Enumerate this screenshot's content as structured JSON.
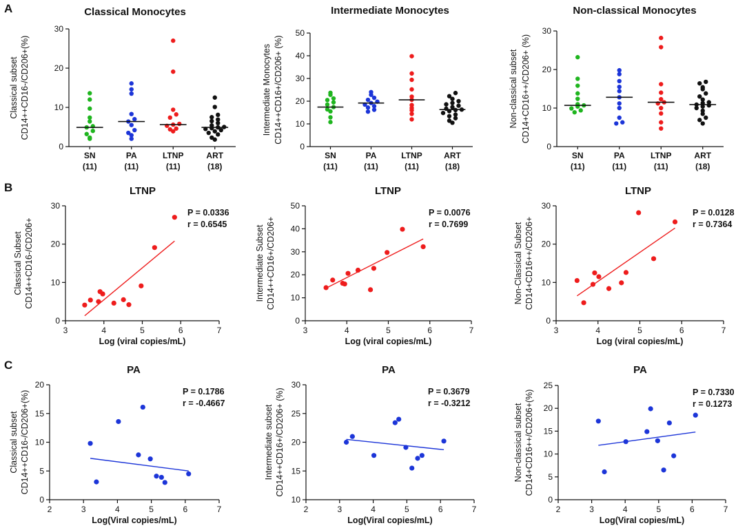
{
  "panel_labels": [
    "A",
    "B",
    "C"
  ],
  "chart_data": [
    {
      "id": "A1",
      "type": "scatter",
      "subtype": "dot-strip",
      "title": "Classical Monocytes",
      "ylabel": [
        "Classical subset",
        "CD14++CD16-/CD206+(%)"
      ],
      "ylim": [
        0,
        30
      ],
      "yticks": [
        0,
        10,
        20,
        30
      ],
      "categories": [
        "SN",
        "PA",
        "LTNP",
        "ART"
      ],
      "counts": [
        "(11)",
        "(11)",
        "(11)",
        "(18)"
      ],
      "colors": [
        "#1fb51f",
        "#1c35d8",
        "#ee1c1c",
        "#111111"
      ],
      "medians": [
        4.9,
        6.4,
        5.6,
        4.9
      ],
      "groups": [
        [
          2.0,
          2.3,
          3.2,
          4.0,
          4.9,
          5.2,
          6.4,
          7.4,
          9.7,
          12.0,
          13.6
        ],
        [
          2.0,
          2.9,
          3.5,
          4.2,
          5.5,
          6.4,
          7.0,
          8.3,
          13.5,
          14.6,
          16.1
        ],
        [
          3.9,
          4.4,
          4.6,
          5.3,
          5.6,
          5.8,
          7.4,
          8.2,
          9.4,
          19.1,
          27.0
        ],
        [
          1.8,
          2.3,
          3.1,
          3.5,
          3.9,
          4.2,
          4.5,
          4.7,
          4.9,
          5.0,
          5.4,
          6.0,
          6.5,
          6.9,
          7.5,
          8.1,
          10.1,
          12.5
        ]
      ]
    },
    {
      "id": "A2",
      "type": "scatter",
      "subtype": "dot-strip",
      "title": "Intermediate Monocytes",
      "ylabel": [
        "Intermediate Monocytes",
        "CD14++CD16+/CD206+ (%)"
      ],
      "ylim": [
        0,
        50
      ],
      "yticks": [
        0,
        10,
        20,
        30,
        40,
        50
      ],
      "categories": [
        "SN",
        "PA",
        "LTNP",
        "ART"
      ],
      "counts": [
        "(11)",
        "(11)",
        "(11)",
        "(18)"
      ],
      "colors": [
        "#1fb51f",
        "#1c35d8",
        "#ee1c1c",
        "#111111"
      ],
      "medians": [
        17.4,
        19.2,
        20.6,
        16.3
      ],
      "groups": [
        [
          10.8,
          12.9,
          15.5,
          16.4,
          17.4,
          18.5,
          19.5,
          20.5,
          21.2,
          22.8,
          23.7
        ],
        [
          15.4,
          16.2,
          17.2,
          17.8,
          18.5,
          19.2,
          19.8,
          20.6,
          21.5,
          22.8,
          24.0
        ],
        [
          12.0,
          14.4,
          16.0,
          17.0,
          18.3,
          20.6,
          22.0,
          25.2,
          29.4,
          32.2,
          39.8
        ],
        [
          10.5,
          11.4,
          12.5,
          13.4,
          14.1,
          14.8,
          15.6,
          16.1,
          16.3,
          16.7,
          17.4,
          18.0,
          18.6,
          19.2,
          20.0,
          21.0,
          22.2,
          23.6
        ]
      ]
    },
    {
      "id": "A3",
      "type": "scatter",
      "subtype": "dot-strip",
      "title": "Non-classical Monocytes",
      "ylabel": [
        "Non-classical subset",
        "CD14+CD16++/CD206+ (%)"
      ],
      "ylim": [
        0,
        30
      ],
      "yticks": [
        0,
        10,
        20,
        30
      ],
      "categories": [
        "SN",
        "PA",
        "LTNP",
        "ART"
      ],
      "counts": [
        "(11)",
        "(11)",
        "(11)",
        "(18)"
      ],
      "colors": [
        "#1fb51f",
        "#1c35d8",
        "#ee1c1c",
        "#111111"
      ],
      "medians": [
        10.7,
        12.8,
        11.5,
        10.9
      ],
      "groups": [
        [
          8.9,
          9.4,
          9.9,
          10.4,
          10.7,
          11.0,
          12.4,
          13.8,
          15.8,
          17.6,
          23.2
        ],
        [
          6.0,
          6.3,
          7.5,
          10.0,
          11.2,
          12.8,
          14.4,
          15.5,
          17.0,
          18.8,
          19.8
        ],
        [
          4.7,
          6.3,
          8.6,
          10.0,
          11.2,
          11.5,
          12.3,
          14.0,
          16.2,
          25.8,
          28.2
        ],
        [
          6.0,
          6.9,
          7.5,
          8.5,
          9.3,
          10.0,
          10.4,
          10.7,
          10.9,
          11.3,
          11.5,
          12.2,
          13.0,
          13.8,
          14.9,
          15.4,
          16.4,
          16.8
        ]
      ]
    },
    {
      "id": "B1",
      "type": "scatter",
      "title": "LTNP",
      "ylabel": [
        "Classical Subset",
        "CD14++CD16-/CD206+"
      ],
      "xlabel": "Log (viral copies/mL)",
      "xlim": [
        3,
        7
      ],
      "ylim": [
        0,
        30
      ],
      "xticks": [
        3,
        4,
        5,
        6,
        7
      ],
      "yticks": [
        0,
        10,
        20,
        30
      ],
      "stats": [
        "P = 0.0336",
        "r  = 0.6545"
      ],
      "color": "#ee1c1c",
      "points": [
        [
          3.5,
          4.1
        ],
        [
          3.65,
          5.4
        ],
        [
          3.86,
          5.0
        ],
        [
          3.9,
          7.6
        ],
        [
          3.97,
          7.0
        ],
        [
          4.26,
          4.6
        ],
        [
          4.51,
          5.5
        ],
        [
          4.65,
          4.2
        ],
        [
          4.97,
          9.1
        ],
        [
          5.32,
          19.1
        ],
        [
          5.84,
          27.0
        ]
      ],
      "fit": [
        [
          3.5,
          1.3
        ],
        [
          5.84,
          20.8
        ]
      ]
    },
    {
      "id": "B2",
      "type": "scatter",
      "title": "LTNP",
      "ylabel": [
        "Intermediate Subset",
        "CD14++CD16+/CD206+"
      ],
      "xlabel": "Log (viral copies/mL)",
      "xlim": [
        3,
        7
      ],
      "ylim": [
        0,
        50
      ],
      "xticks": [
        3,
        4,
        5,
        6,
        7
      ],
      "yticks": [
        0,
        10,
        20,
        30,
        40,
        50
      ],
      "stats": [
        "P = 0.0076",
        "r  = 0.7699"
      ],
      "color": "#ee1c1c",
      "points": [
        [
          3.5,
          14.4
        ],
        [
          3.66,
          17.7
        ],
        [
          3.9,
          16.3
        ],
        [
          3.95,
          16.0
        ],
        [
          4.03,
          20.6
        ],
        [
          4.27,
          22.0
        ],
        [
          4.57,
          13.5
        ],
        [
          4.65,
          22.8
        ],
        [
          4.97,
          29.7
        ],
        [
          5.34,
          39.8
        ],
        [
          5.84,
          32.2
        ]
      ],
      "fit": [
        [
          3.5,
          14.2
        ],
        [
          5.84,
          35.6
        ]
      ]
    },
    {
      "id": "B3",
      "type": "scatter",
      "title": "LTNP",
      "ylabel": [
        "Non-Classical Subset",
        "CD14+CD16++/CD206+"
      ],
      "xlabel": "Log (viral copies/mL)",
      "xlim": [
        3,
        7
      ],
      "ylim": [
        0,
        30
      ],
      "xticks": [
        3,
        4,
        5,
        6,
        7
      ],
      "yticks": [
        0,
        10,
        20,
        30
      ],
      "stats": [
        "P = 0.0128",
        "r  = 0.7364"
      ],
      "color": "#ee1c1c",
      "points": [
        [
          3.5,
          10.5
        ],
        [
          3.66,
          4.7
        ],
        [
          3.88,
          9.5
        ],
        [
          3.92,
          12.5
        ],
        [
          4.02,
          11.5
        ],
        [
          4.26,
          8.4
        ],
        [
          4.56,
          9.9
        ],
        [
          4.67,
          12.6
        ],
        [
          4.97,
          28.2
        ],
        [
          5.33,
          16.2
        ],
        [
          5.84,
          25.8
        ]
      ],
      "fit": [
        [
          3.5,
          6.5
        ],
        [
          5.84,
          24.2
        ]
      ]
    },
    {
      "id": "C1",
      "type": "scatter",
      "title": "PA",
      "ylabel": [
        "Classical subset",
        "CD14++CD16-/CD206+(%)"
      ],
      "xlabel": "Log(Viral copies/mL)",
      "xlim": [
        2,
        7
      ],
      "ylim": [
        0,
        20
      ],
      "xticks": [
        2,
        3,
        4,
        5,
        6,
        7
      ],
      "yticks": [
        0,
        5,
        10,
        15,
        20
      ],
      "stats": [
        "P = 0.1786",
        "r  = -0.4667"
      ],
      "color": "#1c35d8",
      "points": [
        [
          3.2,
          9.8
        ],
        [
          3.38,
          3.1
        ],
        [
          4.03,
          13.6
        ],
        [
          4.62,
          7.8
        ],
        [
          4.75,
          16.1
        ],
        [
          4.97,
          7.1
        ],
        [
          5.15,
          4.1
        ],
        [
          5.3,
          3.9
        ],
        [
          5.4,
          3.0
        ],
        [
          6.1,
          4.5
        ]
      ],
      "fit": [
        [
          3.2,
          7.2
        ],
        [
          6.1,
          5.0
        ]
      ]
    },
    {
      "id": "C2",
      "type": "scatter",
      "title": "PA",
      "ylabel": [
        "Intermediate subset",
        "CD14++CD16+/CD206+ (%)"
      ],
      "xlabel": "Log(Viral copies/mL)",
      "xlim": [
        2,
        7
      ],
      "ylim": [
        10,
        30
      ],
      "xticks": [
        2,
        3,
        4,
        5,
        6,
        7
      ],
      "yticks": [
        10,
        15,
        20,
        25,
        30
      ],
      "stats": [
        "P = 0.3679",
        "r  = -0.3212"
      ],
      "color": "#1c35d8",
      "points": [
        [
          3.2,
          20.0
        ],
        [
          3.38,
          21.0
        ],
        [
          4.02,
          17.7
        ],
        [
          4.65,
          23.4
        ],
        [
          4.76,
          24.0
        ],
        [
          4.97,
          19.1
        ],
        [
          5.15,
          15.5
        ],
        [
          5.32,
          17.2
        ],
        [
          5.45,
          17.7
        ],
        [
          6.1,
          20.2
        ]
      ],
      "fit": [
        [
          3.2,
          20.5
        ],
        [
          6.1,
          18.7
        ]
      ]
    },
    {
      "id": "C3",
      "type": "scatter",
      "title": "PA",
      "ylabel": [
        "Non-classical subset",
        "CD14+CD16++/CD206+(%)"
      ],
      "xlabel": "Log(Viral copies/mL)",
      "xlim": [
        2,
        7
      ],
      "ylim": [
        0,
        25
      ],
      "xticks": [
        2,
        3,
        4,
        5,
        6,
        7
      ],
      "yticks": [
        0,
        5,
        10,
        15,
        20,
        25
      ],
      "stats": [
        "P = 0.7330",
        "r  = 0.1273"
      ],
      "color": "#1c35d8",
      "points": [
        [
          3.2,
          17.2
        ],
        [
          3.38,
          6.1
        ],
        [
          4.02,
          12.7
        ],
        [
          4.65,
          14.9
        ],
        [
          4.76,
          19.9
        ],
        [
          4.97,
          12.9
        ],
        [
          5.15,
          6.5
        ],
        [
          5.32,
          16.8
        ],
        [
          5.45,
          9.6
        ],
        [
          6.1,
          18.5
        ]
      ],
      "fit": [
        [
          3.2,
          11.9
        ],
        [
          6.1,
          14.8
        ]
      ]
    }
  ]
}
